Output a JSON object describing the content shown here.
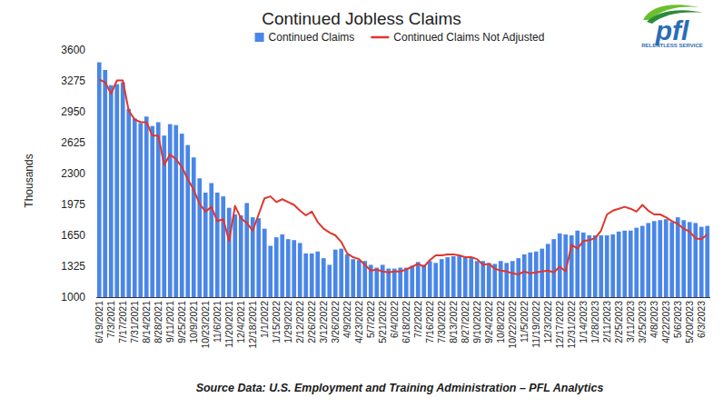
{
  "chart_data": {
    "type": "bar",
    "title": "Continued Jobless Claims",
    "y_label": "Thousands",
    "source": "Source Data: U.S. Employment and Training Administration – PFL Analytics",
    "logo_text": "pfl",
    "logo_tagline": "RELENTLESS SERVICE",
    "categories": [
      "6/19/2021",
      null,
      "7/3/2021",
      null,
      "7/17/2021",
      null,
      "7/31/2021",
      null,
      "8/14/2021",
      null,
      "8/28/2021",
      null,
      "9/11/2021",
      null,
      "9/25/2021",
      null,
      "10/9/2021",
      null,
      "10/23/2021",
      null,
      "11/6/2021",
      null,
      "11/20/2021",
      null,
      "12/4/2021",
      null,
      "12/18/2021",
      null,
      "1/1/2022",
      null,
      "1/15/2022",
      null,
      "1/29/2022",
      null,
      "2/12/2022",
      null,
      "2/26/2022",
      null,
      "3/12/2022",
      null,
      "3/26/2022",
      null,
      "4/9/2022",
      null,
      "4/23/2022",
      null,
      "5/7/2022",
      null,
      "5/21/2022",
      null,
      "6/4/2022",
      null,
      "6/18/2022",
      null,
      "7/2/2022",
      null,
      "7/16/2022",
      null,
      "7/30/2022",
      null,
      "8/13/2022",
      null,
      "8/27/2022",
      null,
      "9/10/2022",
      null,
      "9/24/2022",
      null,
      "10/8/2022",
      null,
      "10/22/2022",
      null,
      "11/5/2022",
      null,
      "11/19/2022",
      null,
      "12/3/2022",
      null,
      "12/17/2022",
      null,
      "12/31/2022",
      null,
      "1/14/2023",
      null,
      "1/28/2023",
      null,
      "2/11/2023",
      null,
      "2/25/2023",
      null,
      "3/11/2023",
      null,
      "3/25/2023",
      null,
      "4/8/2023",
      null,
      "4/22/2023",
      null,
      "5/6/2023",
      null,
      "5/20/2023",
      null,
      "6/3/2023",
      null
    ],
    "series": [
      {
        "name": "Continued Claims",
        "type": "bar",
        "color": "#4a86e8",
        "values": [
          3470,
          3390,
          3230,
          3240,
          3260,
          2980,
          2880,
          2830,
          2900,
          2800,
          2840,
          2700,
          2820,
          2810,
          2720,
          2600,
          2470,
          2250,
          2100,
          2200,
          2100,
          2060,
          1940,
          1870,
          1860,
          1990,
          1840,
          1830,
          1720,
          1540,
          1630,
          1660,
          1610,
          1600,
          1570,
          1460,
          1460,
          1480,
          1410,
          1340,
          1500,
          1510,
          1450,
          1400,
          1390,
          1380,
          1340,
          1310,
          1340,
          1300,
          1300,
          1310,
          1310,
          1330,
          1370,
          1340,
          1380,
          1360,
          1400,
          1420,
          1430,
          1440,
          1430,
          1410,
          1380,
          1380,
          1360,
          1350,
          1380,
          1360,
          1380,
          1410,
          1450,
          1470,
          1480,
          1510,
          1560,
          1610,
          1670,
          1660,
          1650,
          1700,
          1680,
          1650,
          1650,
          1650,
          1650,
          1660,
          1690,
          1700,
          1700,
          1730,
          1750,
          1780,
          1800,
          1810,
          1820,
          1790,
          1840,
          1810,
          1790,
          1780,
          1740,
          1750
        ]
      },
      {
        "name": "Continued Claims Not Adjusted",
        "type": "line",
        "color": "#e0362c",
        "values": [
          3290,
          3260,
          3140,
          3280,
          3280,
          2960,
          2870,
          2840,
          2840,
          2700,
          2700,
          2390,
          2500,
          2450,
          2370,
          2240,
          2130,
          1980,
          1900,
          1950,
          1800,
          1820,
          1590,
          1960,
          1830,
          1780,
          1700,
          1870,
          2040,
          2060,
          2000,
          2030,
          2000,
          1970,
          1910,
          1860,
          1900,
          1790,
          1720,
          1680,
          1650,
          1580,
          1460,
          1420,
          1400,
          1340,
          1280,
          1290,
          1270,
          1260,
          1270,
          1270,
          1290,
          1320,
          1350,
          1320,
          1390,
          1440,
          1440,
          1450,
          1450,
          1440,
          1420,
          1420,
          1400,
          1340,
          1350,
          1300,
          1280,
          1270,
          1250,
          1240,
          1270,
          1250,
          1260,
          1270,
          1280,
          1260,
          1320,
          1270,
          1550,
          1510,
          1590,
          1600,
          1620,
          1700,
          1870,
          1910,
          1930,
          1950,
          1930,
          1900,
          1970,
          1910,
          1870,
          1870,
          1840,
          1800,
          1770,
          1720,
          1690,
          1620,
          1610,
          1660
        ]
      }
    ],
    "ylim": [
      1000,
      3600
    ],
    "yticks": [
      1000,
      1325,
      1650,
      1975,
      2300,
      2625,
      2950,
      3275,
      3600
    ],
    "grid": false,
    "legend": "top"
  }
}
